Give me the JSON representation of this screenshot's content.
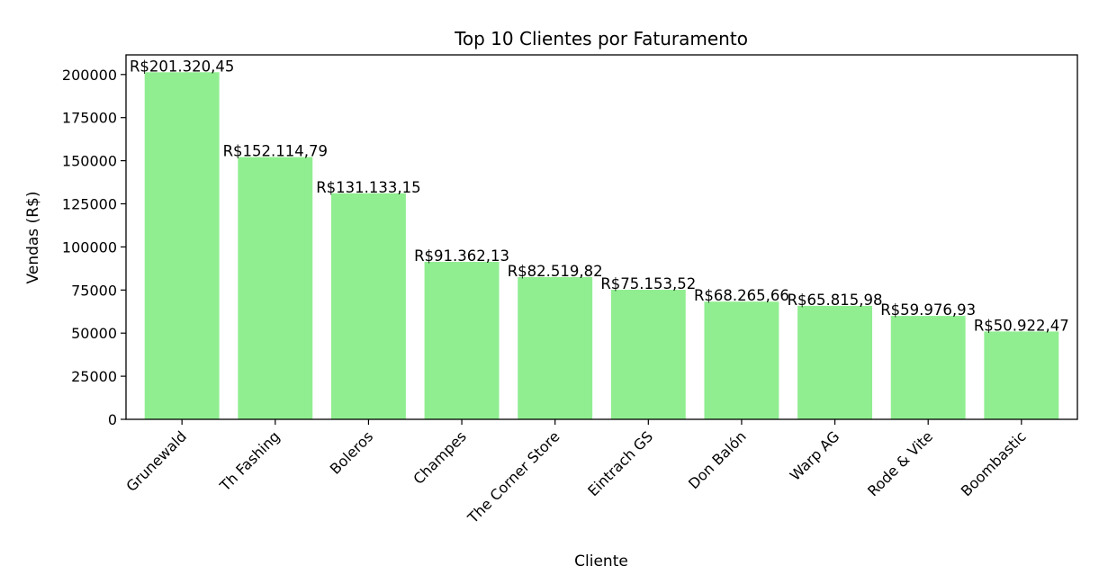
{
  "chart_data": {
    "type": "bar",
    "title": "Top 10 Clientes por Faturamento",
    "xlabel": "Cliente",
    "ylabel": "Vendas (R$)",
    "categories": [
      "Grunewald",
      "Th Fashing",
      "Boleros",
      "Champes",
      "The Corner Store",
      "Eintrach GS",
      "Don Balón",
      "Warp AG",
      "Rode & Vite",
      "Boombastic"
    ],
    "values": [
      201320.45,
      152114.79,
      131133.15,
      91362.13,
      82519.82,
      75153.52,
      68265.66,
      65815.98,
      59976.93,
      50922.47
    ],
    "value_labels": [
      "R$201.320,45",
      "R$152.114,79",
      "R$131.133,15",
      "R$91.362,13",
      "R$82.519,82",
      "R$75.153,52",
      "R$68.265,66",
      "R$65.815,98",
      "R$59.976,93",
      "R$50.922,47"
    ],
    "yticks": [
      0,
      25000,
      50000,
      75000,
      100000,
      125000,
      150000,
      175000,
      200000
    ],
    "ytick_labels": [
      "0",
      "25000",
      "50000",
      "75000",
      "100000",
      "125000",
      "150000",
      "175000",
      "200000"
    ],
    "ylim": [
      0,
      211386
    ],
    "grid": false,
    "bar_color": "#90ee90"
  }
}
